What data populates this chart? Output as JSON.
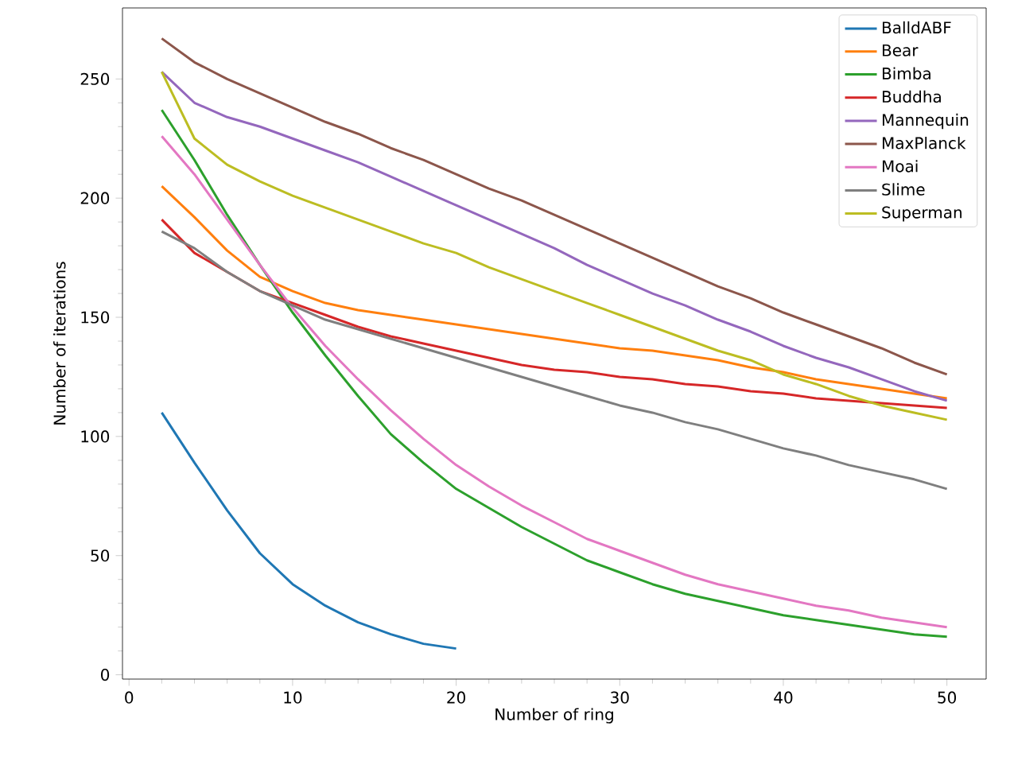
{
  "chart_data": {
    "type": "line",
    "xlabel": "Number of ring",
    "ylabel": "Number of iterations",
    "x": [
      2,
      4,
      6,
      8,
      10,
      12,
      14,
      16,
      18,
      20,
      22,
      24,
      26,
      28,
      30,
      32,
      34,
      36,
      38,
      40,
      42,
      44,
      46,
      48,
      50
    ],
    "series": [
      {
        "name": "BalldABF",
        "color": "#1f77b4",
        "x": [
          2,
          4,
          6,
          8,
          10,
          12,
          14,
          16,
          18,
          20
        ],
        "values": [
          110,
          89,
          69,
          51,
          38,
          29,
          22,
          17,
          13,
          11
        ]
      },
      {
        "name": "Bear",
        "color": "#ff7f0e",
        "values": [
          205,
          192,
          178,
          167,
          161,
          156,
          153,
          151,
          149,
          147,
          145,
          143,
          141,
          139,
          137,
          136,
          134,
          132,
          129,
          127,
          124,
          122,
          120,
          118,
          116
        ]
      },
      {
        "name": "Bimba",
        "color": "#2ca02c",
        "values": [
          237,
          216,
          193,
          172,
          152,
          134,
          117,
          101,
          89,
          78,
          70,
          62,
          55,
          48,
          43,
          38,
          34,
          31,
          28,
          25,
          23,
          21,
          19,
          17,
          16
        ]
      },
      {
        "name": "Buddha",
        "color": "#d62728",
        "values": [
          191,
          177,
          169,
          161,
          156,
          151,
          146,
          142,
          139,
          136,
          133,
          130,
          128,
          127,
          125,
          124,
          122,
          121,
          119,
          118,
          116,
          115,
          114,
          113,
          112
        ]
      },
      {
        "name": "Mannequin",
        "color": "#9467bd",
        "values": [
          253,
          240,
          234,
          230,
          225,
          220,
          215,
          209,
          203,
          197,
          191,
          185,
          179,
          172,
          166,
          160,
          155,
          149,
          144,
          138,
          133,
          129,
          124,
          119,
          115
        ]
      },
      {
        "name": "MaxPlanck",
        "color": "#8c564b",
        "values": [
          267,
          257,
          250,
          244,
          238,
          232,
          227,
          221,
          216,
          210,
          204,
          199,
          193,
          187,
          181,
          175,
          169,
          163,
          158,
          152,
          147,
          142,
          137,
          131,
          126
        ]
      },
      {
        "name": "Moai",
        "color": "#e377c2",
        "values": [
          226,
          210,
          191,
          172,
          154,
          138,
          124,
          111,
          99,
          88,
          79,
          71,
          64,
          57,
          52,
          47,
          42,
          38,
          35,
          32,
          29,
          27,
          24,
          22,
          20
        ]
      },
      {
        "name": "Slime",
        "color": "#7f7f7f",
        "values": [
          186,
          179,
          169,
          161,
          155,
          149,
          145,
          141,
          137,
          133,
          129,
          125,
          121,
          117,
          113,
          110,
          106,
          103,
          99,
          95,
          92,
          88,
          85,
          82,
          78
        ]
      },
      {
        "name": "Superman",
        "color": "#bcbd22",
        "values": [
          253,
          225,
          214,
          207,
          201,
          196,
          191,
          186,
          181,
          177,
          171,
          166,
          161,
          156,
          151,
          146,
          141,
          136,
          132,
          126,
          122,
          117,
          113,
          110,
          107
        ]
      }
    ],
    "xlim": [
      -0.4,
      52.4
    ],
    "ylim": [
      -1.8,
      279.8
    ],
    "xticks": [
      0,
      10,
      20,
      30,
      40,
      50
    ],
    "yticks": [
      0,
      50,
      100,
      150,
      200,
      250
    ],
    "legend": "top right"
  }
}
